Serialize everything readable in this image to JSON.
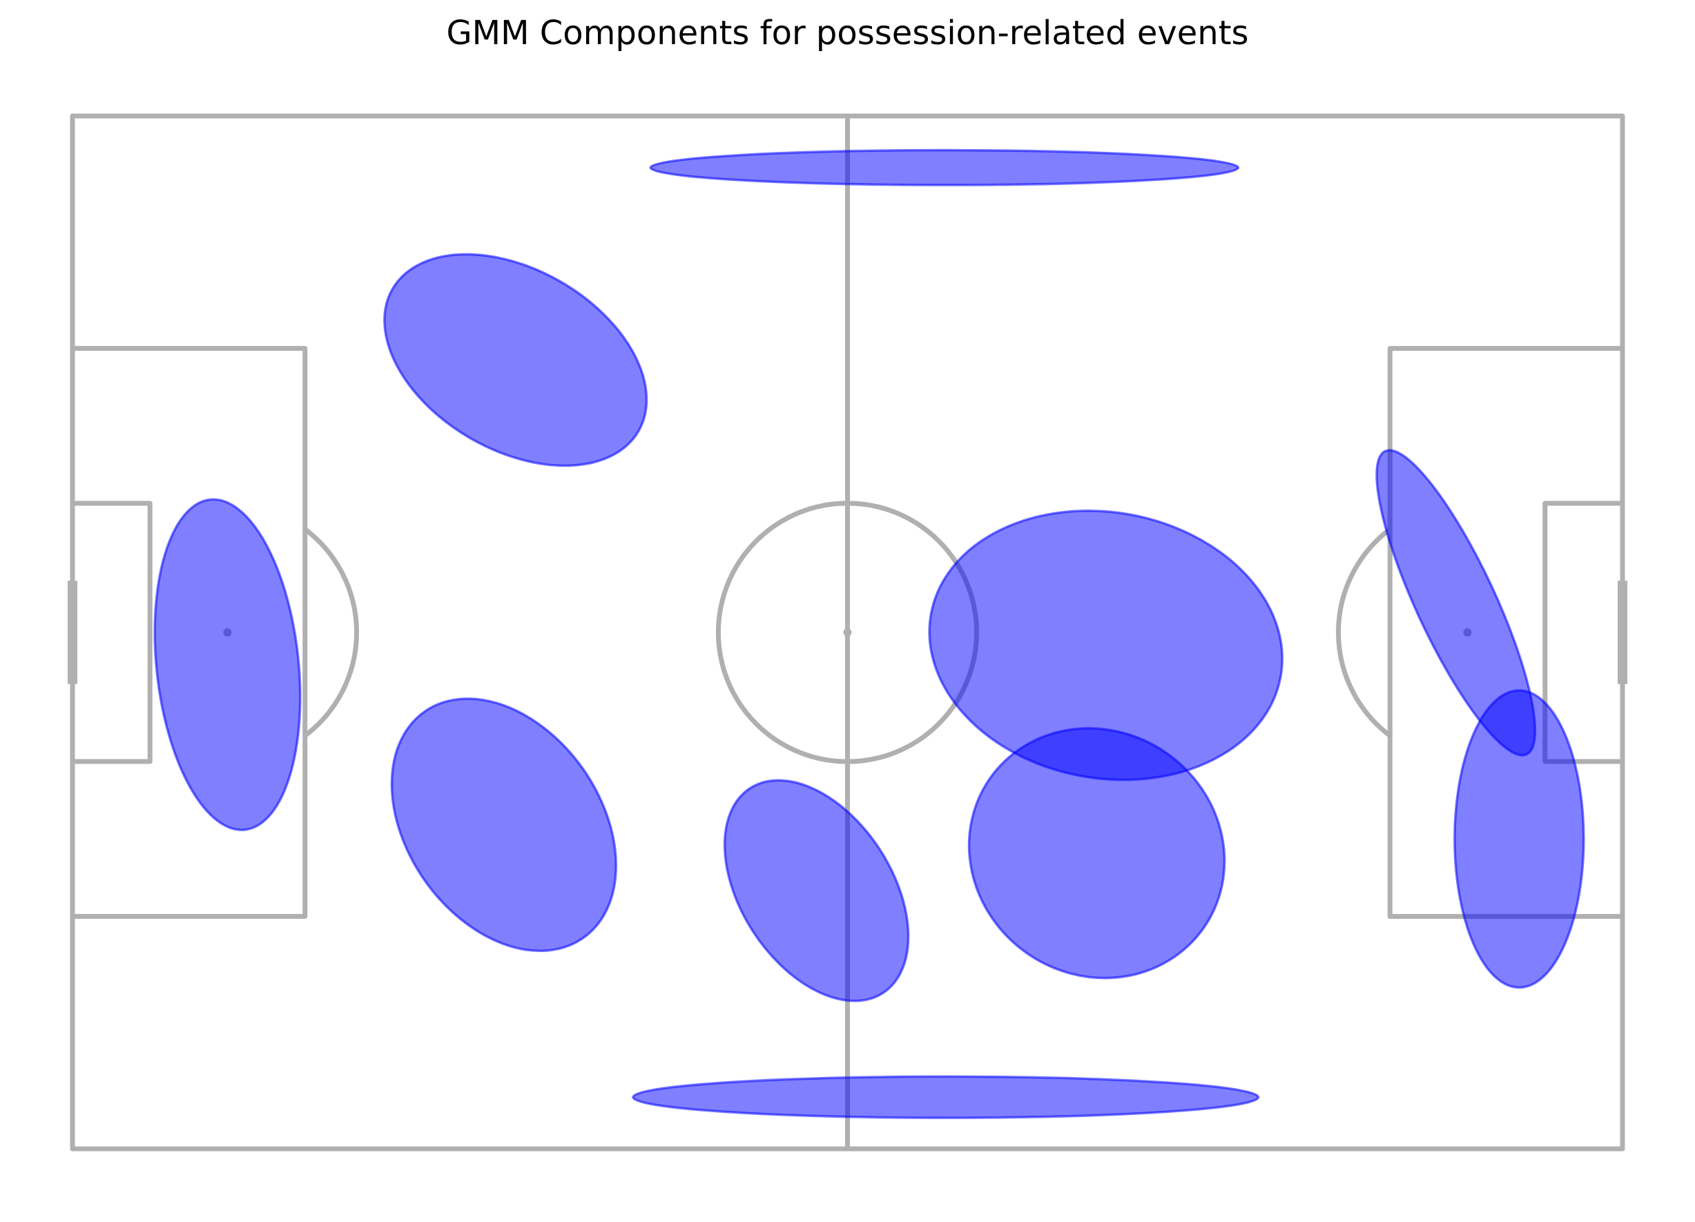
{
  "chart_data": {
    "type": "scatter",
    "title": "GMM Components for possession-related events",
    "xlabel": "",
    "ylabel": "",
    "xlim": [
      0,
      120
    ],
    "ylim": [
      0,
      80
    ],
    "grid": false,
    "legend": "none",
    "pitch": {
      "line_color": "#b0b0b0",
      "goal_color": "#b0b0b0",
      "penalty_box": {
        "depth": 18,
        "width": 44
      },
      "six_yard_box": {
        "depth": 6,
        "width": 20
      },
      "goal_width": 8,
      "centre_circle_radius": 10,
      "penalty_spot_distance": 12,
      "penalty_arc_radius": 10
    },
    "series": [
      {
        "components": [
          {
            "x": 67.5,
            "y": 4.0,
            "width": 45.5,
            "height": 2.7,
            "angle": 0
          },
          {
            "x": 34.3,
            "y": 18.9,
            "width": 22.0,
            "height": 14.0,
            "angle": 30
          },
          {
            "x": 80.0,
            "y": 41.0,
            "width": 27.5,
            "height": 20.6,
            "angle": 10
          },
          {
            "x": 12.0,
            "y": 42.5,
            "width": 25.7,
            "height": 11.0,
            "angle": 84
          },
          {
            "x": 107.1,
            "y": 37.7,
            "width": 25.9,
            "height": 6.1,
            "angle": 65
          },
          {
            "x": 33.4,
            "y": 54.9,
            "width": 21.4,
            "height": 15.0,
            "angle": 55
          },
          {
            "x": 57.6,
            "y": 60.0,
            "width": 18.9,
            "height": 11.7,
            "angle": 57
          },
          {
            "x": 79.3,
            "y": 57.1,
            "width": 20.2,
            "height": 18.9,
            "angle": 35
          },
          {
            "x": 112.0,
            "y": 56.0,
            "width": 23.0,
            "height": 10.0,
            "angle": 90
          },
          {
            "x": 67.6,
            "y": 76.0,
            "width": 48.4,
            "height": 3.2,
            "angle": 0
          }
        ],
        "fill_color": "#0000ff",
        "fill_opacity": 0.5,
        "edge_color": "#0000ff"
      }
    ]
  }
}
